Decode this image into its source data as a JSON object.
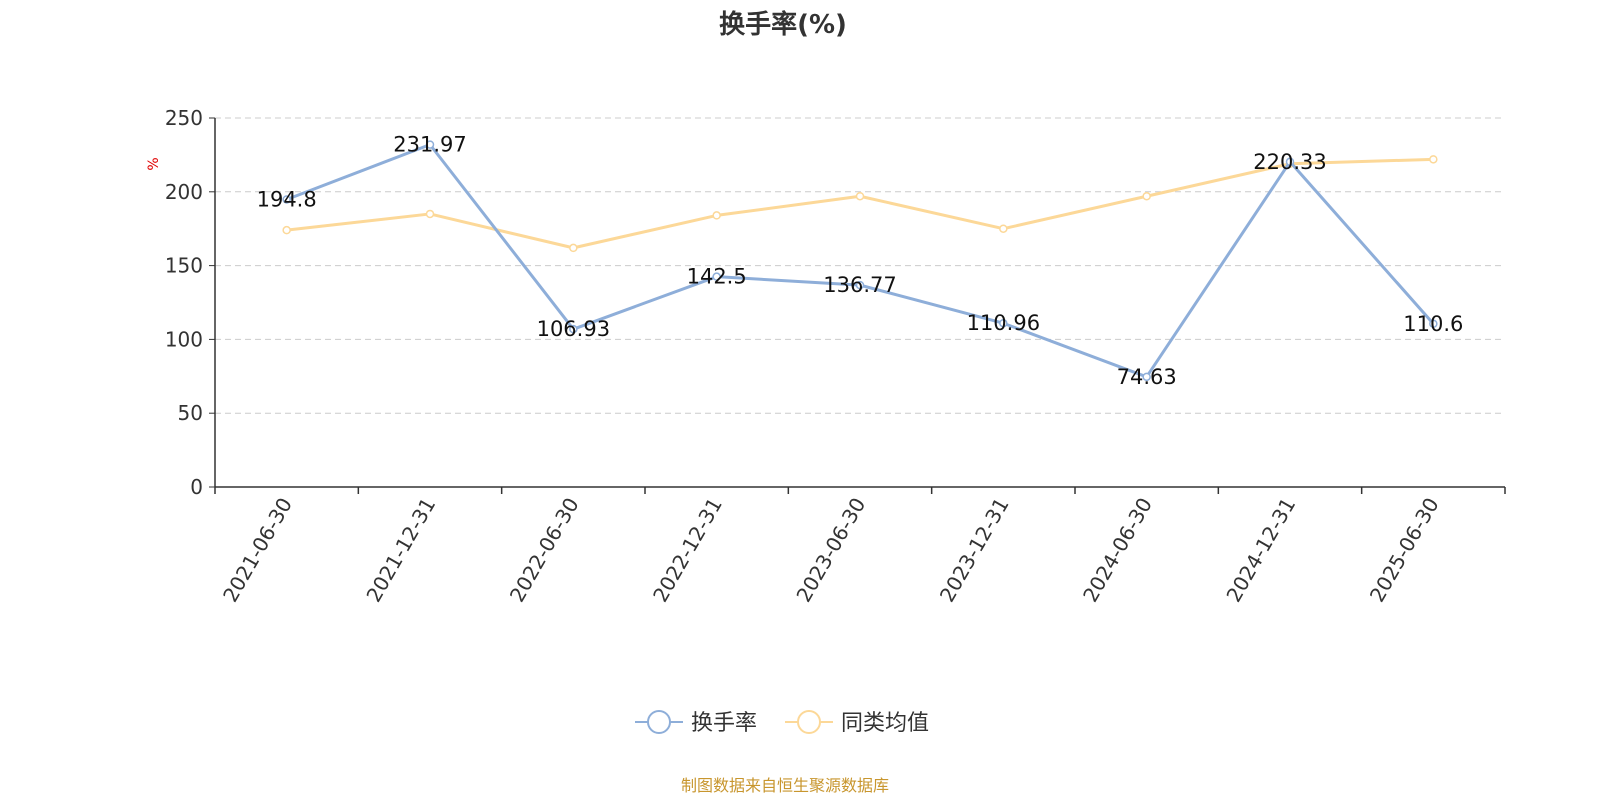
{
  "chart_data": {
    "type": "line",
    "title": "换手率(%)",
    "ylabel": "%",
    "categories": [
      "2021-06-30",
      "2021-12-31",
      "2022-06-30",
      "2022-12-31",
      "2023-06-30",
      "2023-12-31",
      "2024-06-30",
      "2024-12-31",
      "2025-06-30"
    ],
    "ylim": [
      0,
      250
    ],
    "yticks": [
      0,
      50,
      100,
      150,
      200,
      250
    ],
    "grid": true,
    "legend_position": "bottom-center",
    "series": [
      {
        "name": "换手率",
        "color": "#8eaed9",
        "values": [
          194.8,
          231.97,
          106.93,
          142.5,
          136.77,
          110.96,
          74.63,
          220.33,
          110.6
        ],
        "labels": [
          "194.8",
          "231.97",
          "106.93",
          "142.5",
          "136.77",
          "110.96",
          "74.63",
          "220.33",
          "110.6"
        ]
      },
      {
        "name": "同类均值",
        "color": "#fcd898",
        "values": [
          174,
          185,
          162,
          184,
          197,
          175,
          197,
          219,
          222
        ]
      }
    ]
  },
  "source_note": "制图数据来自恒生聚源数据库"
}
